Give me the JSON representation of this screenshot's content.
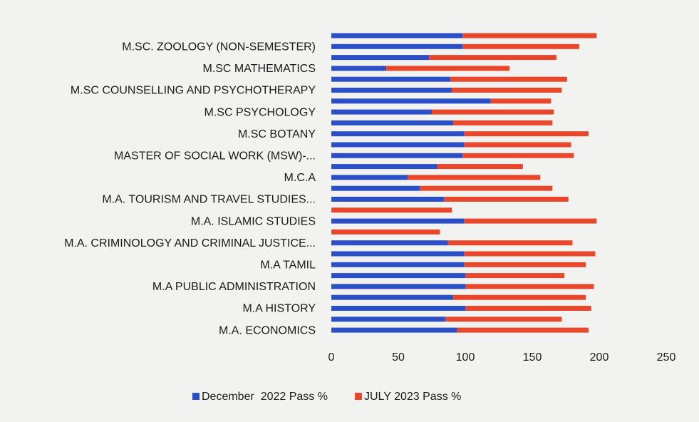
{
  "chart_data": {
    "type": "bar",
    "orientation": "horizontal",
    "stacked": true,
    "categories": [
      null,
      "M.SC. ZOOLOGY (NON-SEMESTER)",
      null,
      "M.SC MATHEMATICS",
      null,
      "M.SC COUNSELLING AND PSYCHOTHERAPY",
      null,
      "M.SC PSYCHOLOGY",
      null,
      "M.SC BOTANY",
      null,
      "MASTER OF SOCIAL WORK (MSW)-...",
      null,
      "M.C.A",
      null,
      "M.A. TOURISM AND TRAVEL STUDIES...",
      null,
      "M.A. ISLAMIC STUDIES",
      null,
      "M.A. CRIMINOLOGY AND CRIMINAL JUSTICE...",
      null,
      "M.A TAMIL",
      null,
      "M.A PUBLIC ADMINISTRATION",
      null,
      "M.A HISTORY",
      null,
      "M.A. ECONOMICS"
    ],
    "series": [
      {
        "name": "December  2022 Pass %",
        "color": "#2b4fc6",
        "values": [
          98,
          98,
          73,
          41,
          89,
          90,
          119,
          75,
          91,
          99,
          99,
          98,
          79,
          57,
          66,
          84,
          0,
          99,
          0,
          87,
          99,
          99,
          100,
          100,
          91,
          100,
          85,
          94
        ]
      },
      {
        "name": "JULY 2023 Pass %",
        "color": "#e8472b",
        "values": [
          100,
          87,
          95,
          92,
          87,
          82,
          45,
          91,
          74,
          93,
          80,
          83,
          64,
          99,
          99,
          93,
          90,
          99,
          81,
          93,
          98,
          91,
          74,
          96,
          99,
          94,
          87,
          98
        ]
      }
    ],
    "xlim": [
      0,
      250
    ],
    "xticks": [
      0,
      50,
      100,
      150,
      200,
      250
    ],
    "grid": false,
    "legend": "bottom"
  }
}
